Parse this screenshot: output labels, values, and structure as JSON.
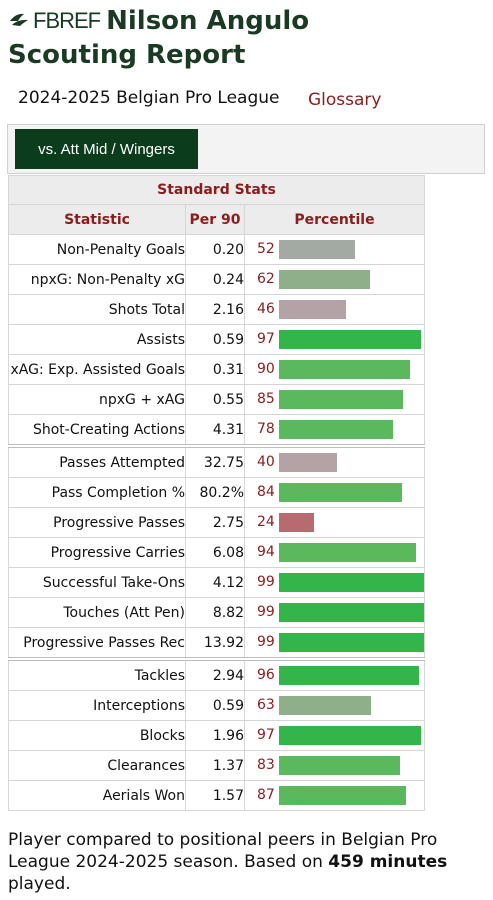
{
  "header": {
    "logo_text": "FBREF",
    "title_line1": "Nilson Angulo",
    "title_line2": "Scouting Report"
  },
  "league_label": "2024-2025 Belgian Pro League",
  "glossary_label": "Glossary",
  "tab_label": "vs. Att Mid / Wingers",
  "table": {
    "caption": "Standard Stats",
    "headers": [
      "Statistic",
      "Per 90",
      "Percentile"
    ],
    "rows": [
      {
        "stat": "Non-Penalty Goals",
        "per90": "0.20",
        "pct": "52"
      },
      {
        "stat": "npxG: Non-Penalty xG",
        "per90": "0.24",
        "pct": "62"
      },
      {
        "stat": "Shots Total",
        "per90": "2.16",
        "pct": "46"
      },
      {
        "stat": "Assists",
        "per90": "0.59",
        "pct": "97"
      },
      {
        "stat": "xAG: Exp. Assisted Goals",
        "per90": "0.31",
        "pct": "90"
      },
      {
        "stat": "npxG + xAG",
        "per90": "0.55",
        "pct": "85"
      },
      {
        "stat": "Shot-Creating Actions",
        "per90": "4.31",
        "pct": "78"
      },
      {
        "stat": "Passes Attempted",
        "per90": "32.75",
        "pct": "40"
      },
      {
        "stat": "Pass Completion %",
        "per90": "80.2%",
        "pct": "84"
      },
      {
        "stat": "Progressive Passes",
        "per90": "2.75",
        "pct": "24"
      },
      {
        "stat": "Progressive Carries",
        "per90": "6.08",
        "pct": "94"
      },
      {
        "stat": "Successful Take-Ons",
        "per90": "4.12",
        "pct": "99"
      },
      {
        "stat": "Touches (Att Pen)",
        "per90": "8.82",
        "pct": "99"
      },
      {
        "stat": "Progressive Passes Rec",
        "per90": "13.92",
        "pct": "99"
      },
      {
        "stat": "Tackles",
        "per90": "2.94",
        "pct": "96"
      },
      {
        "stat": "Interceptions",
        "per90": "0.59",
        "pct": "63"
      },
      {
        "stat": "Blocks",
        "per90": "1.96",
        "pct": "97"
      },
      {
        "stat": "Clearances",
        "per90": "1.37",
        "pct": "83"
      },
      {
        "stat": "Aerials Won",
        "per90": "1.57",
        "pct": "87"
      }
    ],
    "bar_colors": {
      "elite": "#33b54a",
      "good": "#5cb85c",
      "average_high": "#8fae8a",
      "average": "#a3aaa4",
      "below": "#b5a2a6",
      "poor": "#b86b6f"
    }
  },
  "footer": {
    "text_before": "Player compared to positional peers in Belgian Pro League 2024-2025 season. Based on ",
    "minutes": "459 minutes",
    "text_after": " played."
  }
}
